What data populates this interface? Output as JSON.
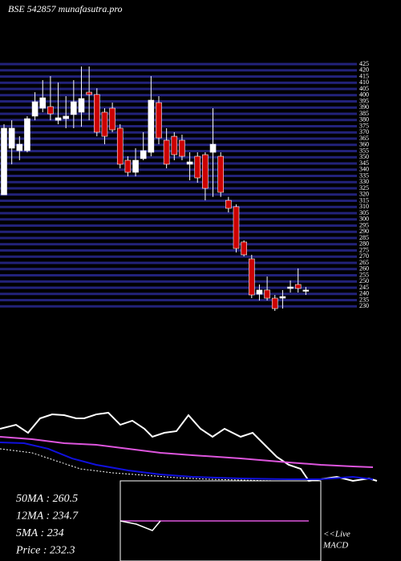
{
  "chart_data": [
    {
      "type": "candlestick",
      "title": "BSE 542857 munafasutra.pro",
      "ylim": [
        225,
        425
      ],
      "yticks": [
        230,
        235,
        240,
        245,
        250,
        255,
        260,
        265,
        270,
        275,
        280,
        285,
        290,
        295,
        300,
        305,
        310,
        315,
        320,
        325,
        330,
        335,
        340,
        345,
        350,
        355,
        360,
        365,
        370,
        375,
        380,
        385,
        390,
        395,
        400,
        405,
        410,
        415,
        420,
        425
      ],
      "grid": true,
      "grid_color": "#22227a",
      "up_color": "#ffffff",
      "down_color": "#cc0000",
      "open": [
        319.8,
        357.3,
        355.3,
        355.3,
        383.1,
        389.5,
        390.8,
        379.8,
        381.1,
        384.4,
        386.3,
        402.4,
        400.5,
        386.3,
        389.5,
        373.4,
        347.6,
        337.9,
        348.9,
        354.0,
        394.0,
        363.7,
        366.9,
        363.7,
        344.4,
        350.8,
        352.1,
        354.0,
        350.8,
        315.3,
        310.2,
        281.8,
        268.2,
        239.8,
        243.1,
        236.6,
        236.6,
        244.4,
        247.6,
        242.4
      ],
      "high": [
        376.6,
        379.8,
        366.9,
        383.1,
        402.4,
        412.1,
        415.3,
        410.2,
        399.2,
        412.1,
        423.1,
        423.1,
        405.6,
        389.5,
        394.0,
        376.6,
        350.8,
        357.3,
        370.2,
        415.3,
        399.2,
        373.4,
        370.2,
        368.2,
        354.0,
        354.0,
        354.0,
        389.5,
        354.0,
        318.1,
        312.1,
        283.1,
        271.5,
        247.6,
        254.0,
        239.2,
        243.1,
        250.8,
        260.5,
        245.6
      ],
      "low": [
        319.8,
        344.4,
        347.6,
        354.0,
        379.8,
        386.3,
        379.8,
        376.6,
        373.4,
        373.4,
        374.7,
        379.8,
        366.9,
        360.5,
        370.2,
        341.1,
        334.7,
        334.7,
        347.6,
        350.8,
        360.5,
        341.1,
        347.6,
        347.6,
        331.5,
        329.5,
        315.3,
        318.1,
        318.1,
        305.6,
        273.4,
        270.2,
        236.6,
        234.7,
        234.7,
        226.3,
        228.2,
        241.1,
        241.1,
        239.2
      ],
      "close": [
        373.4,
        373.4,
        360.5,
        381.1,
        394.7,
        397.9,
        385.0,
        381.8,
        383.1,
        394.7,
        397.3,
        400.5,
        370.2,
        366.9,
        372.1,
        344.4,
        337.9,
        347.6,
        355.3,
        396.0,
        365.6,
        344.4,
        352.1,
        350.8,
        346.3,
        333.4,
        325.0,
        360.5,
        321.8,
        308.9,
        276.6,
        271.5,
        239.2,
        243.1,
        236.6,
        228.2,
        237.9,
        245.6,
        244.4,
        243.1
      ]
    },
    {
      "type": "line",
      "ylim": [
        0,
        100
      ],
      "xlim": [
        0,
        100
      ],
      "series": [
        {
          "color": "#ffffff",
          "x": [
            0,
            4,
            7,
            10,
            13,
            16,
            19,
            21,
            24,
            27,
            30,
            33,
            36,
            38,
            41,
            44,
            47,
            50,
            53,
            56,
            60,
            63,
            66,
            69,
            72,
            75,
            77,
            80,
            84,
            88,
            92,
            94
          ],
          "values": [
            68.2,
            72.7,
            63.6,
            80,
            84.5,
            83.6,
            80,
            80,
            84.5,
            86.4,
            72.7,
            77.3,
            68.2,
            59.1,
            63.6,
            65.5,
            83.6,
            68.2,
            59.1,
            68.2,
            59.1,
            63.6,
            50,
            36.4,
            27.3,
            22.7,
            9.1,
            10.9,
            13.6,
            9.1,
            11.8,
            9.1
          ]
        },
        {
          "color": "#dd55dd",
          "x": [
            0,
            8,
            16,
            24,
            32,
            40,
            48,
            60,
            72,
            80,
            88,
            93
          ],
          "values": [
            59.1,
            56.4,
            51.8,
            50,
            45.5,
            40.9,
            38.2,
            34.5,
            30,
            27.3,
            25.5,
            24.5
          ]
        },
        {
          "color": "#1010dd",
          "x": [
            0,
            6,
            12,
            18,
            24,
            32,
            40,
            48,
            60,
            72,
            80,
            88,
            93
          ],
          "values": [
            52.7,
            51.8,
            45.5,
            34.5,
            27.3,
            20.9,
            16.4,
            13.6,
            11.8,
            10.9,
            10.9,
            13.6,
            10.9
          ]
        },
        {
          "color": "#ffffff",
          "dashed": true,
          "x": [
            0,
            8,
            14,
            20,
            28,
            36,
            44,
            52,
            60,
            68,
            76
          ],
          "values": [
            45.5,
            40.9,
            31.8,
            22.7,
            18.2,
            15.5,
            12.7,
            10.9,
            10,
            9.1,
            9.1
          ]
        }
      ],
      "legend_texts": [
        "50MA : 260.5",
        "12MA : 234.7",
        "5MA : 234",
        "Price   : 232.3"
      ]
    },
    {
      "type": "macd",
      "ylim": [
        -10,
        10
      ],
      "xlim": [
        0,
        100
      ],
      "label_lines": [
        "<<Live",
        "MACD"
      ],
      "series": [
        {
          "color": "#dd55dd",
          "x": [
            0,
            94
          ],
          "values": [
            0,
            0
          ]
        },
        {
          "color": "#ffffff",
          "x": [
            0,
            8,
            16,
            20
          ],
          "values": [
            0,
            -1,
            -3,
            0
          ]
        }
      ]
    }
  ]
}
